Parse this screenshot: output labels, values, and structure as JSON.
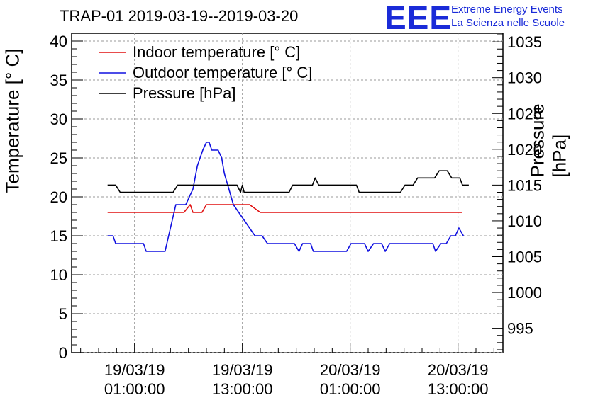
{
  "header": {
    "title": "TRAP-01 2019-03-19--2019-03-20",
    "logo_mark": "EEE",
    "logo_line1": "Extreme Energy Events",
    "logo_line2": "La Scienza nelle Scuole"
  },
  "colors": {
    "indoor": "#e01010",
    "outdoor": "#1010e0",
    "pressure": "#000000",
    "logo": "#1a2bd8"
  },
  "chart_data": {
    "type": "line",
    "title": "TRAP-01 2019-03-19--2019-03-20",
    "xlabel": "",
    "ylabel": "Temperature [° C]",
    "y2label": "Pressure [hPa]",
    "xlim": [
      0,
      48
    ],
    "ylim": [
      0,
      41
    ],
    "y2lim": [
      991.6,
      1036.2
    ],
    "xticks": [
      {
        "x": 7,
        "date": "19/03/19",
        "time": "01:00:00"
      },
      {
        "x": 19,
        "date": "19/03/19",
        "time": "13:00:00"
      },
      {
        "x": 31,
        "date": "20/03/19",
        "time": "01:00:00"
      },
      {
        "x": 43,
        "date": "20/03/19",
        "time": "13:00:00"
      }
    ],
    "yticks": [
      "0",
      "5",
      "10",
      "15",
      "20",
      "25",
      "30",
      "35",
      "40"
    ],
    "y2ticks": [
      "995",
      "1000",
      "1005",
      "1010",
      "1015",
      "1020",
      "1025",
      "1030",
      "1035"
    ],
    "legend_position": "top-left",
    "series": [
      {
        "name": "Indoor temperature [° C]",
        "axis": "left",
        "color": "#e01010",
        "points": [
          [
            4,
            18
          ],
          [
            12.5,
            18
          ],
          [
            13.2,
            19
          ],
          [
            13.5,
            18
          ],
          [
            14.5,
            18
          ],
          [
            15,
            19
          ],
          [
            19.8,
            19
          ],
          [
            21,
            18
          ],
          [
            43.5,
            18
          ]
        ]
      },
      {
        "name": "Outdoor temperature [° C]",
        "axis": "left",
        "color": "#1010e0",
        "points": [
          [
            4,
            15
          ],
          [
            4.6,
            15
          ],
          [
            4.9,
            14
          ],
          [
            8,
            14
          ],
          [
            8.3,
            13
          ],
          [
            10.4,
            13
          ],
          [
            11,
            16
          ],
          [
            11.6,
            19
          ],
          [
            12.7,
            19
          ],
          [
            13.5,
            21
          ],
          [
            14,
            24
          ],
          [
            14.6,
            26
          ],
          [
            15,
            27
          ],
          [
            15.3,
            27
          ],
          [
            15.6,
            26
          ],
          [
            16.3,
            26
          ],
          [
            16.7,
            25
          ],
          [
            17,
            23
          ],
          [
            17.5,
            21
          ],
          [
            18,
            19
          ],
          [
            18.6,
            18
          ],
          [
            19.2,
            17
          ],
          [
            19.8,
            16
          ],
          [
            20.4,
            15
          ],
          [
            21.2,
            15
          ],
          [
            21.8,
            14
          ],
          [
            24.8,
            14
          ],
          [
            25.3,
            13
          ],
          [
            25.7,
            14
          ],
          [
            26.6,
            14
          ],
          [
            26.9,
            13
          ],
          [
            30.6,
            13
          ],
          [
            31.1,
            14
          ],
          [
            32.6,
            14
          ],
          [
            33,
            13
          ],
          [
            33.6,
            14
          ],
          [
            34.5,
            14
          ],
          [
            34.9,
            13
          ],
          [
            35.4,
            14
          ],
          [
            40.2,
            14
          ],
          [
            40.5,
            13
          ],
          [
            41.1,
            14
          ],
          [
            41.7,
            14
          ],
          [
            42.2,
            15
          ],
          [
            42.7,
            15
          ],
          [
            43.1,
            16
          ],
          [
            43.6,
            15
          ]
        ]
      },
      {
        "name": "Pressure [hPa]",
        "axis": "right",
        "color": "#000000",
        "points": [
          [
            4,
            1015
          ],
          [
            4.9,
            1015
          ],
          [
            5.4,
            1014
          ],
          [
            11.3,
            1014
          ],
          [
            11.8,
            1015
          ],
          [
            18.4,
            1015
          ],
          [
            18.8,
            1014
          ],
          [
            19,
            1015
          ],
          [
            19.2,
            1014
          ],
          [
            24.2,
            1014
          ],
          [
            24.6,
            1015
          ],
          [
            26.8,
            1015
          ],
          [
            27.1,
            1016
          ],
          [
            27.5,
            1015
          ],
          [
            31.7,
            1015
          ],
          [
            32,
            1014
          ],
          [
            36.6,
            1014
          ],
          [
            37.1,
            1015
          ],
          [
            38,
            1015
          ],
          [
            38.5,
            1016
          ],
          [
            40.4,
            1016
          ],
          [
            40.9,
            1017
          ],
          [
            41.8,
            1017
          ],
          [
            42.3,
            1016
          ],
          [
            43.2,
            1016
          ],
          [
            43.5,
            1015
          ],
          [
            44.2,
            1015
          ]
        ]
      }
    ]
  }
}
